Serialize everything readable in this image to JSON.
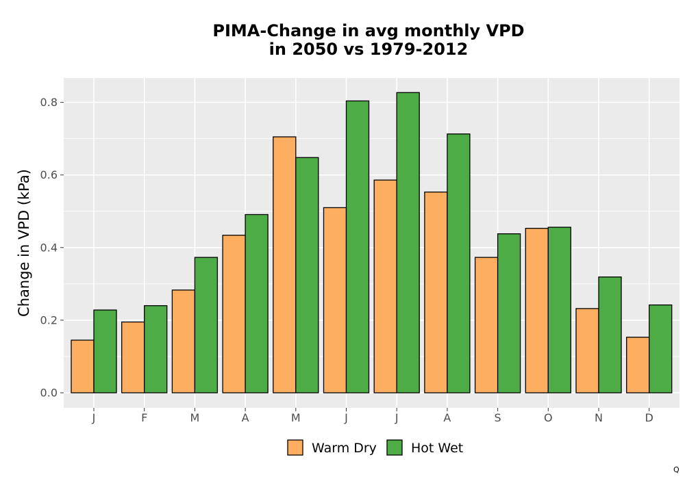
{
  "chart_data": {
    "type": "bar",
    "title": "PIMA-Change in avg monthly VPD\nin 2050 vs 1979-2012",
    "title_lines": [
      "PIMA-Change in avg monthly VPD",
      "in 2050 vs 1979-2012"
    ],
    "xlabel": "",
    "ylabel": "Change in VPD (kPa)",
    "categories": [
      "J",
      "F",
      "M",
      "A",
      "M",
      "J",
      "J",
      "A",
      "S",
      "O",
      "N",
      "D"
    ],
    "series": [
      {
        "name": "Warm Dry",
        "color": "#FDAE61",
        "values": [
          0.145,
          0.195,
          0.283,
          0.434,
          0.705,
          0.51,
          0.586,
          0.553,
          0.373,
          0.453,
          0.232,
          0.153
        ]
      },
      {
        "name": "Hot Wet",
        "color": "#4DAC45",
        "values": [
          0.228,
          0.24,
          0.373,
          0.491,
          0.648,
          0.804,
          0.827,
          0.713,
          0.438,
          0.456,
          0.319,
          0.242
        ]
      }
    ],
    "yticks": [
      0.0,
      0.2,
      0.4,
      0.6,
      0.8
    ],
    "ytick_labels": [
      "0.0",
      "0.2",
      "0.4",
      "0.6",
      "0.8"
    ],
    "ylim": [
      -0.04,
      0.87
    ],
    "grid": true,
    "legend_position": "bottom",
    "panel_background": "#EBEBEB"
  },
  "corner_glyph": "Q"
}
